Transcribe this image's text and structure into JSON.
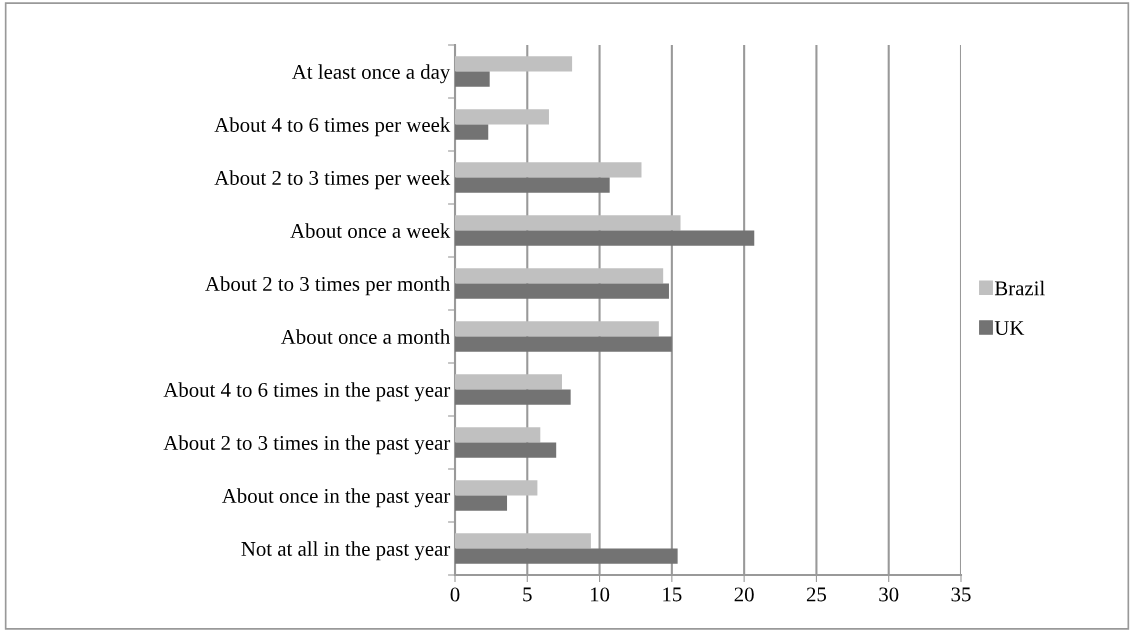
{
  "chart_data": {
    "type": "bar",
    "orientation": "horizontal",
    "categories": [
      "At least once a day",
      "About 4 to 6 times per week",
      "About 2 to 3 times per week",
      "About once a week",
      "About 2 to 3 times per month",
      "About once a month",
      "About 4 to 6 times in the past year",
      "About 2 to 3 times in the past year",
      "About once in the past year",
      "Not at all in the past year"
    ],
    "series": [
      {
        "name": "Brazil",
        "color": "#c0c0c0",
        "values": [
          8.1,
          6.5,
          12.9,
          15.6,
          14.4,
          14.1,
          7.4,
          5.9,
          5.7,
          9.4
        ]
      },
      {
        "name": "UK",
        "color": "#737373",
        "values": [
          2.4,
          2.3,
          10.7,
          20.7,
          14.8,
          15.0,
          8.0,
          7.0,
          3.6,
          15.4
        ]
      }
    ],
    "xlim": [
      0,
      35
    ],
    "xticks": [
      0,
      5,
      10,
      15,
      20,
      25,
      30,
      35
    ],
    "grid": "x",
    "legend": "right"
  }
}
